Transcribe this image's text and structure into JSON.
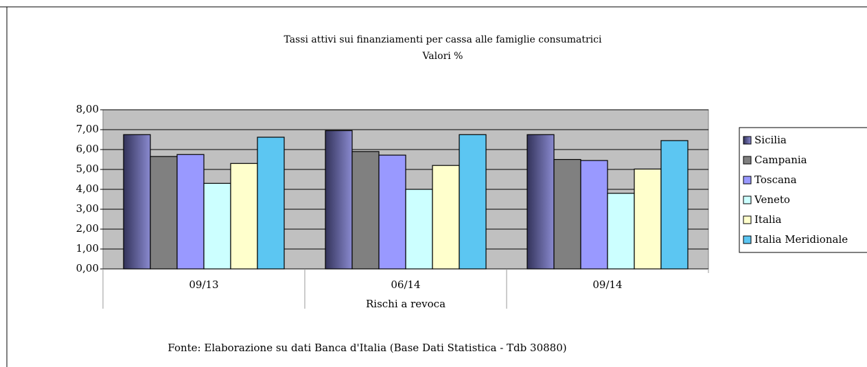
{
  "chart_data": {
    "type": "bar",
    "title": "Tassi attivi sui finanziamenti per cassa alle famiglie consumatrici",
    "subtitle": "Valori %",
    "x_label": "Rischi a revoca",
    "source": "Fonte: Elaborazione su dati Banca d'Italia (Base Dati Statistica - Tdb 30880)",
    "categories": [
      "09/13",
      "06/14",
      "09/14"
    ],
    "series": [
      {
        "name": "Sicilia",
        "color": "#666699",
        "values": [
          6.75,
          6.95,
          6.75
        ]
      },
      {
        "name": "Campania",
        "color": "#808080",
        "values": [
          5.65,
          5.9,
          5.5
        ]
      },
      {
        "name": "Toscana",
        "color": "#9999ff",
        "values": [
          5.75,
          5.72,
          5.45
        ]
      },
      {
        "name": "Veneto",
        "color": "#ccffff",
        "values": [
          4.3,
          4.0,
          3.8
        ]
      },
      {
        "name": "Italia",
        "color": "#ffffcc",
        "values": [
          5.3,
          5.2,
          5.02
        ]
      },
      {
        "name": "Italia Meridionale",
        "color": "#5cc6f2",
        "values": [
          6.62,
          6.75,
          6.45
        ]
      }
    ],
    "ylim": [
      0,
      8
    ],
    "yticks": [
      {
        "value": 0,
        "label": "0,00"
      },
      {
        "value": 1,
        "label": "1,00"
      },
      {
        "value": 2,
        "label": "2,00"
      },
      {
        "value": 3,
        "label": "3,00"
      },
      {
        "value": 4,
        "label": "4,00"
      },
      {
        "value": 5,
        "label": "5,00"
      },
      {
        "value": 6,
        "label": "6,00"
      },
      {
        "value": 7,
        "label": "7,00"
      },
      {
        "value": 8,
        "label": "8,00"
      }
    ],
    "grid": true,
    "legend": "right"
  }
}
